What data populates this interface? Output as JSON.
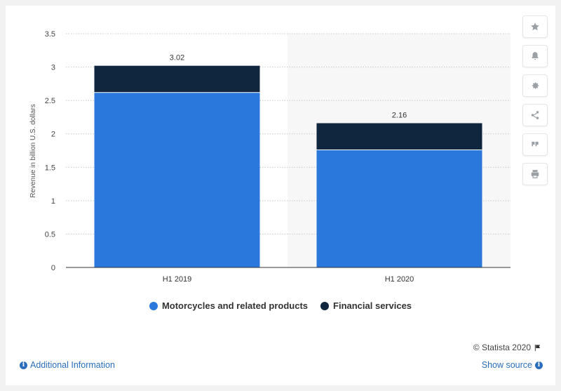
{
  "chart_data": {
    "type": "bar",
    "stacked": true,
    "categories": [
      "H1 2019",
      "H1 2020"
    ],
    "series": [
      {
        "name": "Motorcycles and related products",
        "values": [
          2.62,
          1.76
        ],
        "color": "#2a78dc"
      },
      {
        "name": "Financial services",
        "values": [
          0.4,
          0.4
        ],
        "color": "#10263e"
      }
    ],
    "totals": [
      "3.02",
      "2.16"
    ],
    "ylabel": "Revenue in billion U.S. dollars",
    "xlabel": "",
    "ylim": [
      0,
      3.5
    ],
    "yticks": [
      "0",
      "0.5",
      "1",
      "1.5",
      "2",
      "2.5",
      "3",
      "3.5"
    ],
    "grid": true,
    "legend_position": "bottom"
  },
  "toolbar": {
    "icons": [
      "star-icon",
      "bell-icon",
      "gear-icon",
      "share-icon",
      "quote-icon",
      "print-icon"
    ]
  },
  "footer": {
    "copyright": "© Statista 2020",
    "additional_info": "Additional Information",
    "show_source": "Show source"
  }
}
